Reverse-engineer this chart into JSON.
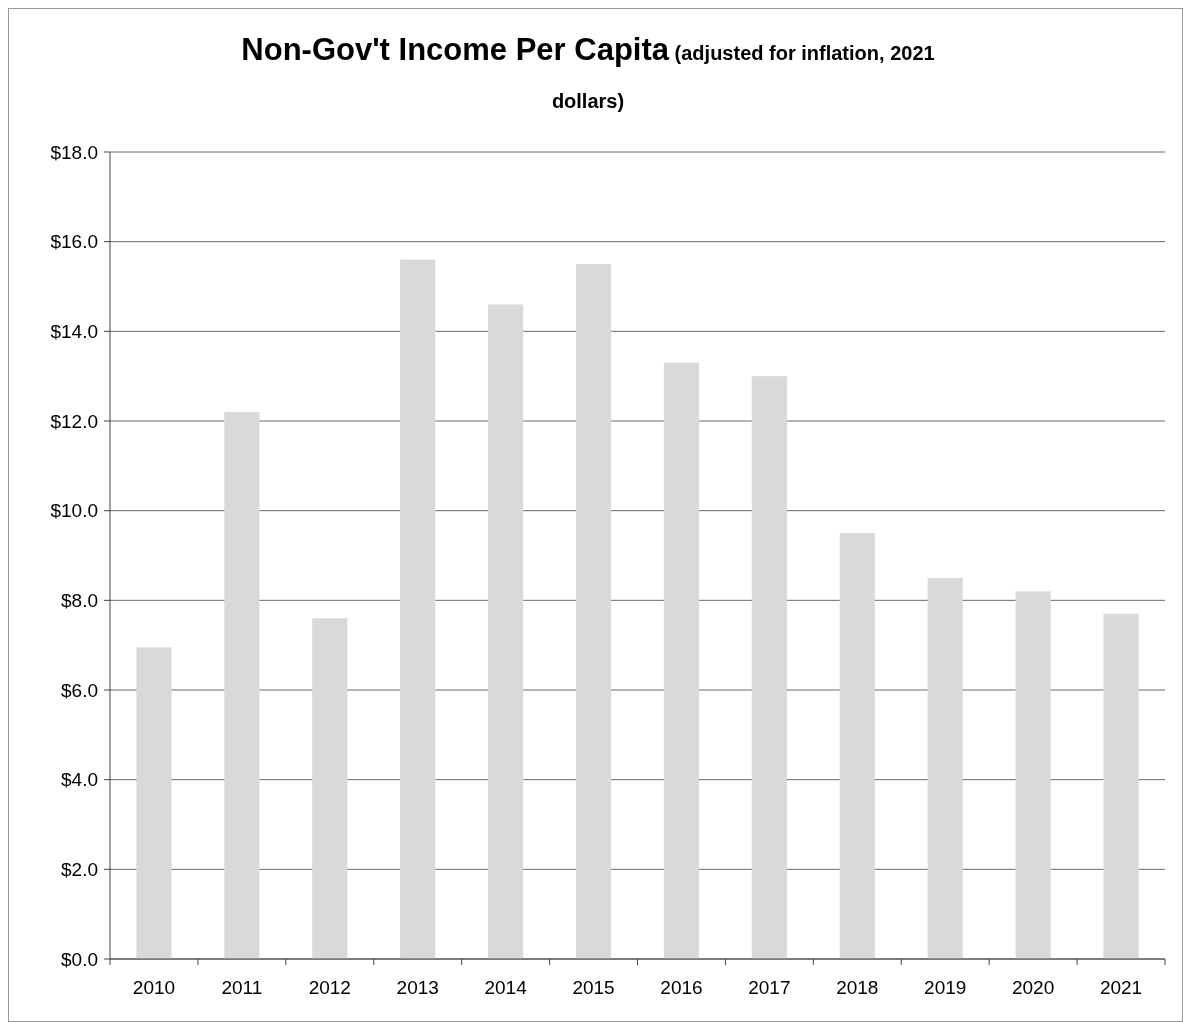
{
  "chart_data": {
    "type": "bar",
    "title": "Non-Gov't Income Per Capita",
    "subtitle": "(adjusted for inflation, 2021 dollars)",
    "categories": [
      "2010",
      "2011",
      "2012",
      "2013",
      "2014",
      "2015",
      "2016",
      "2017",
      "2018",
      "2019",
      "2020",
      "2021"
    ],
    "values": [
      6.95,
      12.2,
      7.6,
      15.6,
      14.6,
      15.5,
      13.3,
      13.0,
      9.5,
      8.5,
      8.2,
      7.7
    ],
    "color": "#d9d9d9",
    "ylim": [
      0,
      18
    ],
    "yticks": [
      {
        "value": 0,
        "label": "$0.0"
      },
      {
        "value": 2,
        "label": "$2.0"
      },
      {
        "value": 4,
        "label": "$4.0"
      },
      {
        "value": 6,
        "label": "$6.0"
      },
      {
        "value": 8,
        "label": "$8.0"
      },
      {
        "value": 10,
        "label": "$10.0"
      },
      {
        "value": 12,
        "label": "$12.0"
      },
      {
        "value": 14,
        "label": "$14.0"
      },
      {
        "value": 16,
        "label": "$16.0"
      },
      {
        "value": 18,
        "label": "$18.0"
      }
    ],
    "grid": "y"
  }
}
